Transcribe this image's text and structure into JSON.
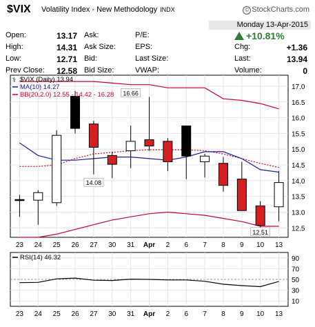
{
  "header": {
    "symbol": "$VIX",
    "description": "Volatility Index - New Methodology",
    "exchange": "INDX",
    "logo": "StockCharts.com",
    "date": "Monday  13-Apr-2015",
    "change_pct": "+10.81%"
  },
  "quote": {
    "open_label": "Open:",
    "open": "13.17",
    "high_label": "High:",
    "high": "14.31",
    "low_label": "Low:",
    "low": "12.71",
    "prevclose_label": "Prev Close:",
    "prevclose": "12.58",
    "ask_label": "Ask:",
    "asksize_label": "Ask Size:",
    "bid_label": "Bid:",
    "bidsize_label": "Bid Size:",
    "pe_label": "P/E:",
    "eps_label": "EPS:",
    "lastsize_label": "Last Size:",
    "vwap_label": "VWAP:",
    "chg_label": "Chg:",
    "chg": "+1.36",
    "last_label": "Last:",
    "last": "13.94",
    "volume_label": "Volume:",
    "volume": "0"
  },
  "colors": {
    "up": "#ffffff",
    "down_red": "#d42020",
    "down_black": "#000000",
    "ma": "#1a1aa0",
    "bb": "#c8002a",
    "rsi": "#000000",
    "up_green": "#2e7d32"
  },
  "chart_data": [
    {
      "type": "candlestick",
      "legend": [
        "$VIX (Daily) 13.94",
        "MA(10) 14.27",
        "BB(20,2.0) 12.55 - 14.42 - 16.28"
      ],
      "x": [
        "23",
        "24",
        "25",
        "26",
        "27",
        "30",
        "31",
        "Apr",
        "2",
        "6",
        "7",
        "8",
        "9",
        "10",
        "13"
      ],
      "ohlc": [
        {
          "o": 13.4,
          "h": 13.55,
          "l": 12.85,
          "c": 13.37,
          "color": "black"
        },
        {
          "o": 13.38,
          "h": 13.7,
          "l": 12.6,
          "c": 13.62,
          "color": "up"
        },
        {
          "o": 13.3,
          "h": 15.6,
          "l": 13.2,
          "c": 15.44,
          "color": "up"
        },
        {
          "o": 16.68,
          "h": 16.85,
          "l": 15.5,
          "c": 15.66,
          "color": "black"
        },
        {
          "o": 15.8,
          "h": 15.9,
          "l": 14.2,
          "c": 15.06,
          "color": "red"
        },
        {
          "o": 14.8,
          "h": 14.92,
          "l": 14.08,
          "c": 14.52,
          "color": "red"
        },
        {
          "o": 14.95,
          "h": 15.75,
          "l": 14.4,
          "c": 15.25,
          "color": "up"
        },
        {
          "o": 15.3,
          "h": 16.66,
          "l": 14.95,
          "c": 15.1,
          "color": "red"
        },
        {
          "o": 15.25,
          "h": 15.35,
          "l": 14.3,
          "c": 14.6,
          "color": "red"
        },
        {
          "o": 15.74,
          "h": 15.75,
          "l": 14.05,
          "c": 14.78,
          "color": "black"
        },
        {
          "o": 14.6,
          "h": 14.85,
          "l": 14.1,
          "c": 14.78,
          "color": "up"
        },
        {
          "o": 14.55,
          "h": 14.75,
          "l": 13.65,
          "c": 13.85,
          "color": "red"
        },
        {
          "o": 14.05,
          "h": 14.6,
          "l": 13.05,
          "c": 13.05,
          "color": "red"
        },
        {
          "o": 13.2,
          "h": 13.35,
          "l": 12.51,
          "c": 12.58,
          "color": "red"
        },
        {
          "o": 13.17,
          "h": 14.31,
          "l": 12.71,
          "c": 13.94,
          "color": "up"
        }
      ],
      "ma10": [
        15.2,
        14.8,
        14.65,
        14.65,
        14.7,
        14.75,
        14.75,
        14.7,
        14.65,
        14.75,
        14.92,
        14.92,
        14.7,
        14.35,
        14.27
      ],
      "bb_upper": [
        17.15,
        17.15,
        17.15,
        17.15,
        17.15,
        17.1,
        17.05,
        17.05,
        16.95,
        16.95,
        16.95,
        16.6,
        16.55,
        16.45,
        16.28
      ],
      "bb_mid": [
        14.45,
        14.45,
        14.5,
        14.7,
        14.85,
        14.9,
        14.95,
        14.98,
        14.98,
        14.98,
        14.95,
        14.85,
        14.7,
        14.55,
        14.42
      ],
      "bb_lower": [
        12.2,
        12.2,
        12.3,
        12.45,
        12.6,
        12.75,
        12.85,
        12.95,
        13.0,
        12.95,
        12.9,
        12.8,
        12.7,
        12.55,
        12.55
      ],
      "annotations": [
        {
          "x": "27",
          "y": 14.08,
          "label": "14.08"
        },
        {
          "x": "31",
          "y": 16.66,
          "label": "16.66"
        },
        {
          "x": "10",
          "y": 12.51,
          "label": "12.51"
        }
      ],
      "ylim": [
        12.2,
        17.35
      ],
      "yticks": [
        12.5,
        13.0,
        13.5,
        14.0,
        14.5,
        15.0,
        15.5,
        16.0,
        16.5,
        17.0
      ]
    },
    {
      "type": "line",
      "legend": "RSI(14) 46.32",
      "x": [
        "23",
        "24",
        "25",
        "26",
        "27",
        "30",
        "31",
        "Apr",
        "2",
        "6",
        "7",
        "8",
        "9",
        "10",
        "13"
      ],
      "values": [
        44.0,
        44.5,
        51.0,
        52.5,
        48.5,
        48.0,
        50.5,
        50.0,
        49.0,
        49.0,
        46.5,
        41.0,
        38.5,
        36.5,
        46.32
      ],
      "ylim": [
        0,
        100
      ],
      "yticks": [
        10,
        30,
        50,
        70,
        90
      ]
    }
  ]
}
